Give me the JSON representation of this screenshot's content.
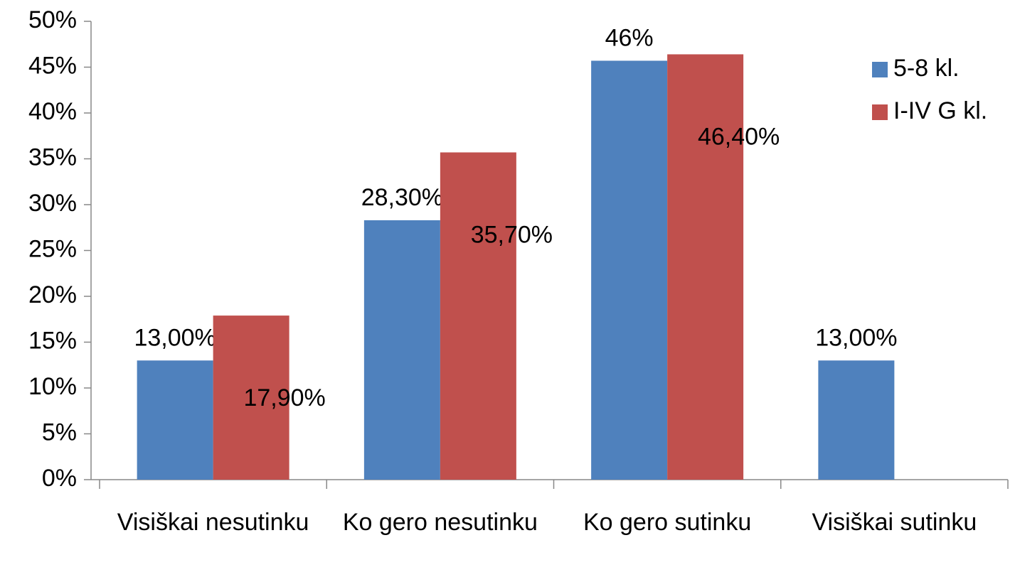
{
  "chart_data": {
    "type": "bar",
    "categories": [
      "Visiškai nesutinku",
      "Ko gero nesutinku",
      "Ko gero sutinku",
      "Visiškai sutinku"
    ],
    "series": [
      {
        "name": "5-8 kl.",
        "color": "#4f81bd",
        "values": [
          13,
          28.3,
          45.7,
          13
        ],
        "value_labels": [
          "13,00%",
          "28,30%",
          "46%",
          "13,00%"
        ]
      },
      {
        "name": "I-IV G kl.",
        "color": "#c0504d",
        "values": [
          17.9,
          35.7,
          46.4,
          null
        ],
        "value_labels": [
          "17,90%",
          "35,70%",
          "46,40%",
          null
        ]
      }
    ],
    "ylim": [
      0,
      50
    ],
    "yticks": [
      {
        "value": 0,
        "label": "0%"
      },
      {
        "value": 5,
        "label": "5%"
      },
      {
        "value": 10,
        "label": "10%"
      },
      {
        "value": 15,
        "label": "15%"
      },
      {
        "value": 20,
        "label": "20%"
      },
      {
        "value": 25,
        "label": "25%"
      },
      {
        "value": 30,
        "label": "30%"
      },
      {
        "value": 35,
        "label": "35%"
      },
      {
        "value": 40,
        "label": "40%"
      },
      {
        "value": 45,
        "label": "45%"
      },
      {
        "value": 50,
        "label": "50%"
      }
    ],
    "grid": false,
    "legend": "right"
  }
}
